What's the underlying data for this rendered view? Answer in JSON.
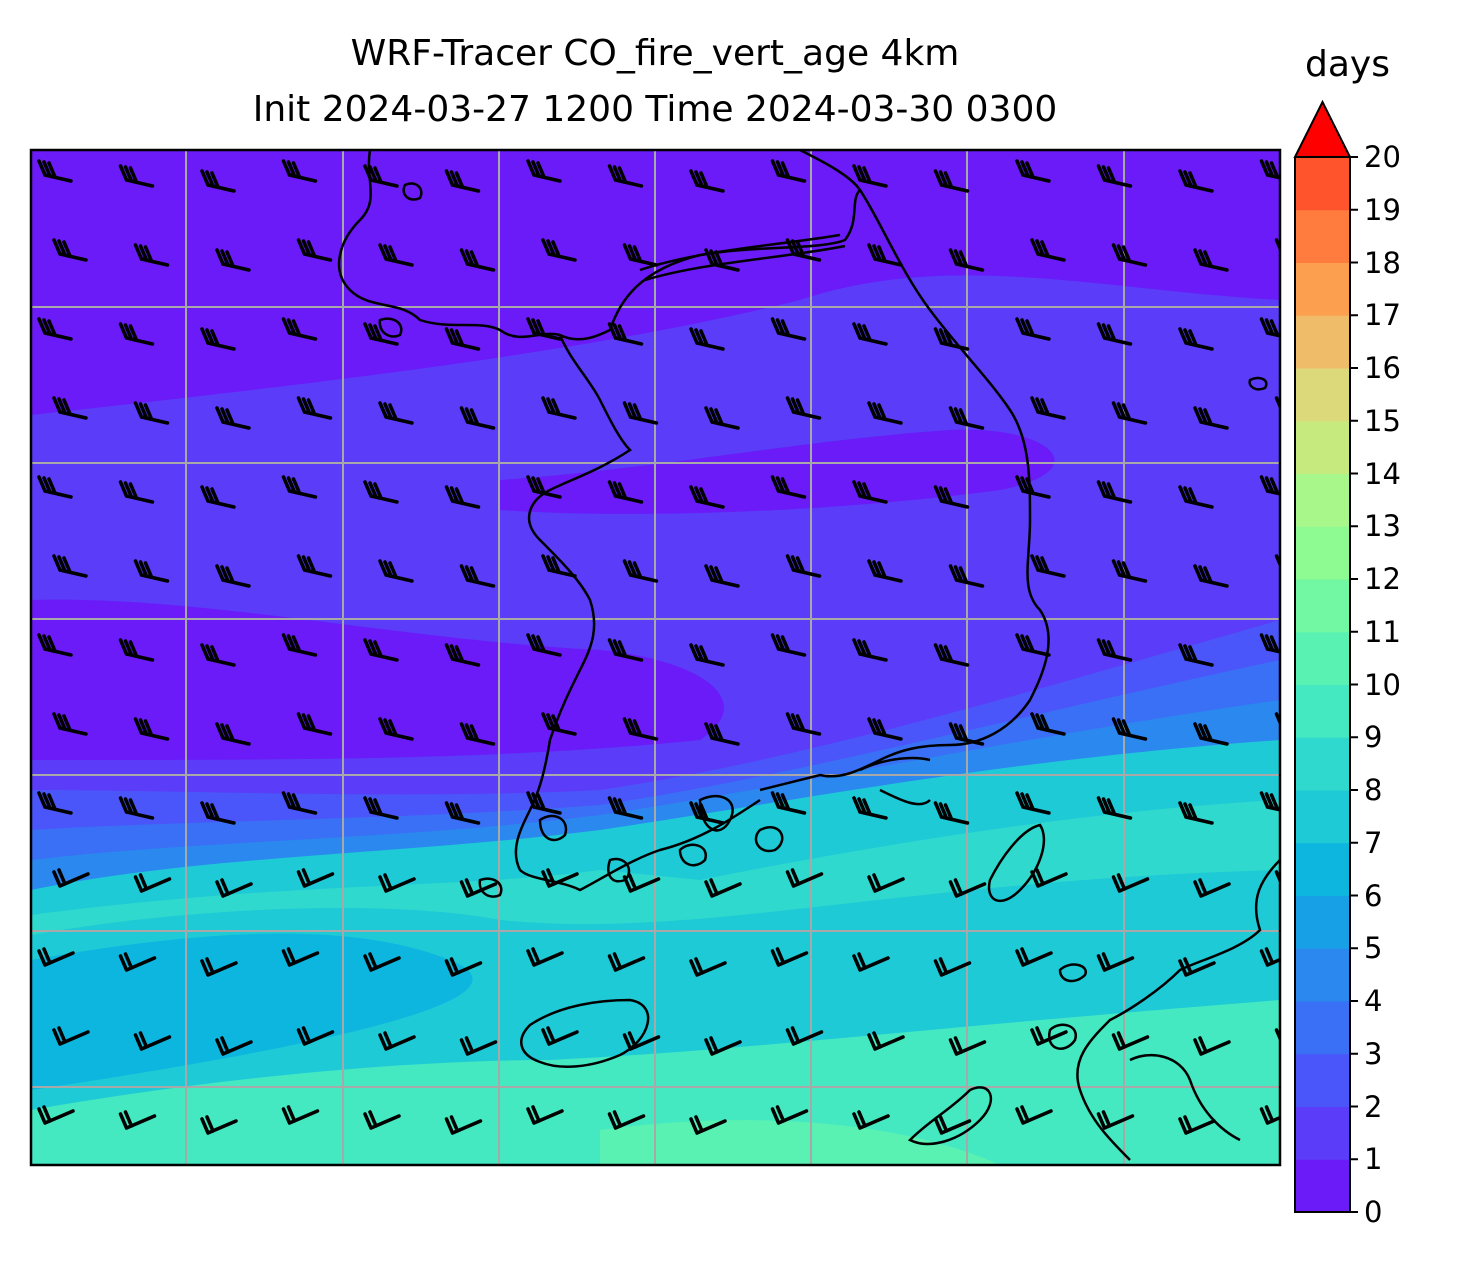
{
  "title_line1": "WRF-Tracer CO_fire_vert_age 4km",
  "title_line2": "Init 2024-03-27 1200 Time 2024-03-30 0300",
  "colorbar": {
    "units": "days",
    "ticks": [
      "0",
      "1",
      "2",
      "3",
      "4",
      "5",
      "6",
      "7",
      "8",
      "9",
      "10",
      "11",
      "12",
      "13",
      "14",
      "15",
      "16",
      "17",
      "18",
      "19",
      "20"
    ],
    "extend": "max",
    "colors": [
      "#6a1bf7",
      "#5a3cf9",
      "#4a56f9",
      "#3a70f6",
      "#2a88ef",
      "#17a0e6",
      "#0cb6de",
      "#1ecad6",
      "#2fd9cd",
      "#44e8c1",
      "#5af2b2",
      "#72f7a2",
      "#8dfa92",
      "#a8f78a",
      "#c6ea7e",
      "#dcd97a",
      "#efbd6a",
      "#fca050",
      "#ff7b3e",
      "#ff542c",
      "#ff2a18",
      "#ff0000"
    ]
  },
  "map": {
    "field": "CO_fire_vert_age",
    "gridlines": true,
    "coastlines": true,
    "wind_barbs": true
  }
}
